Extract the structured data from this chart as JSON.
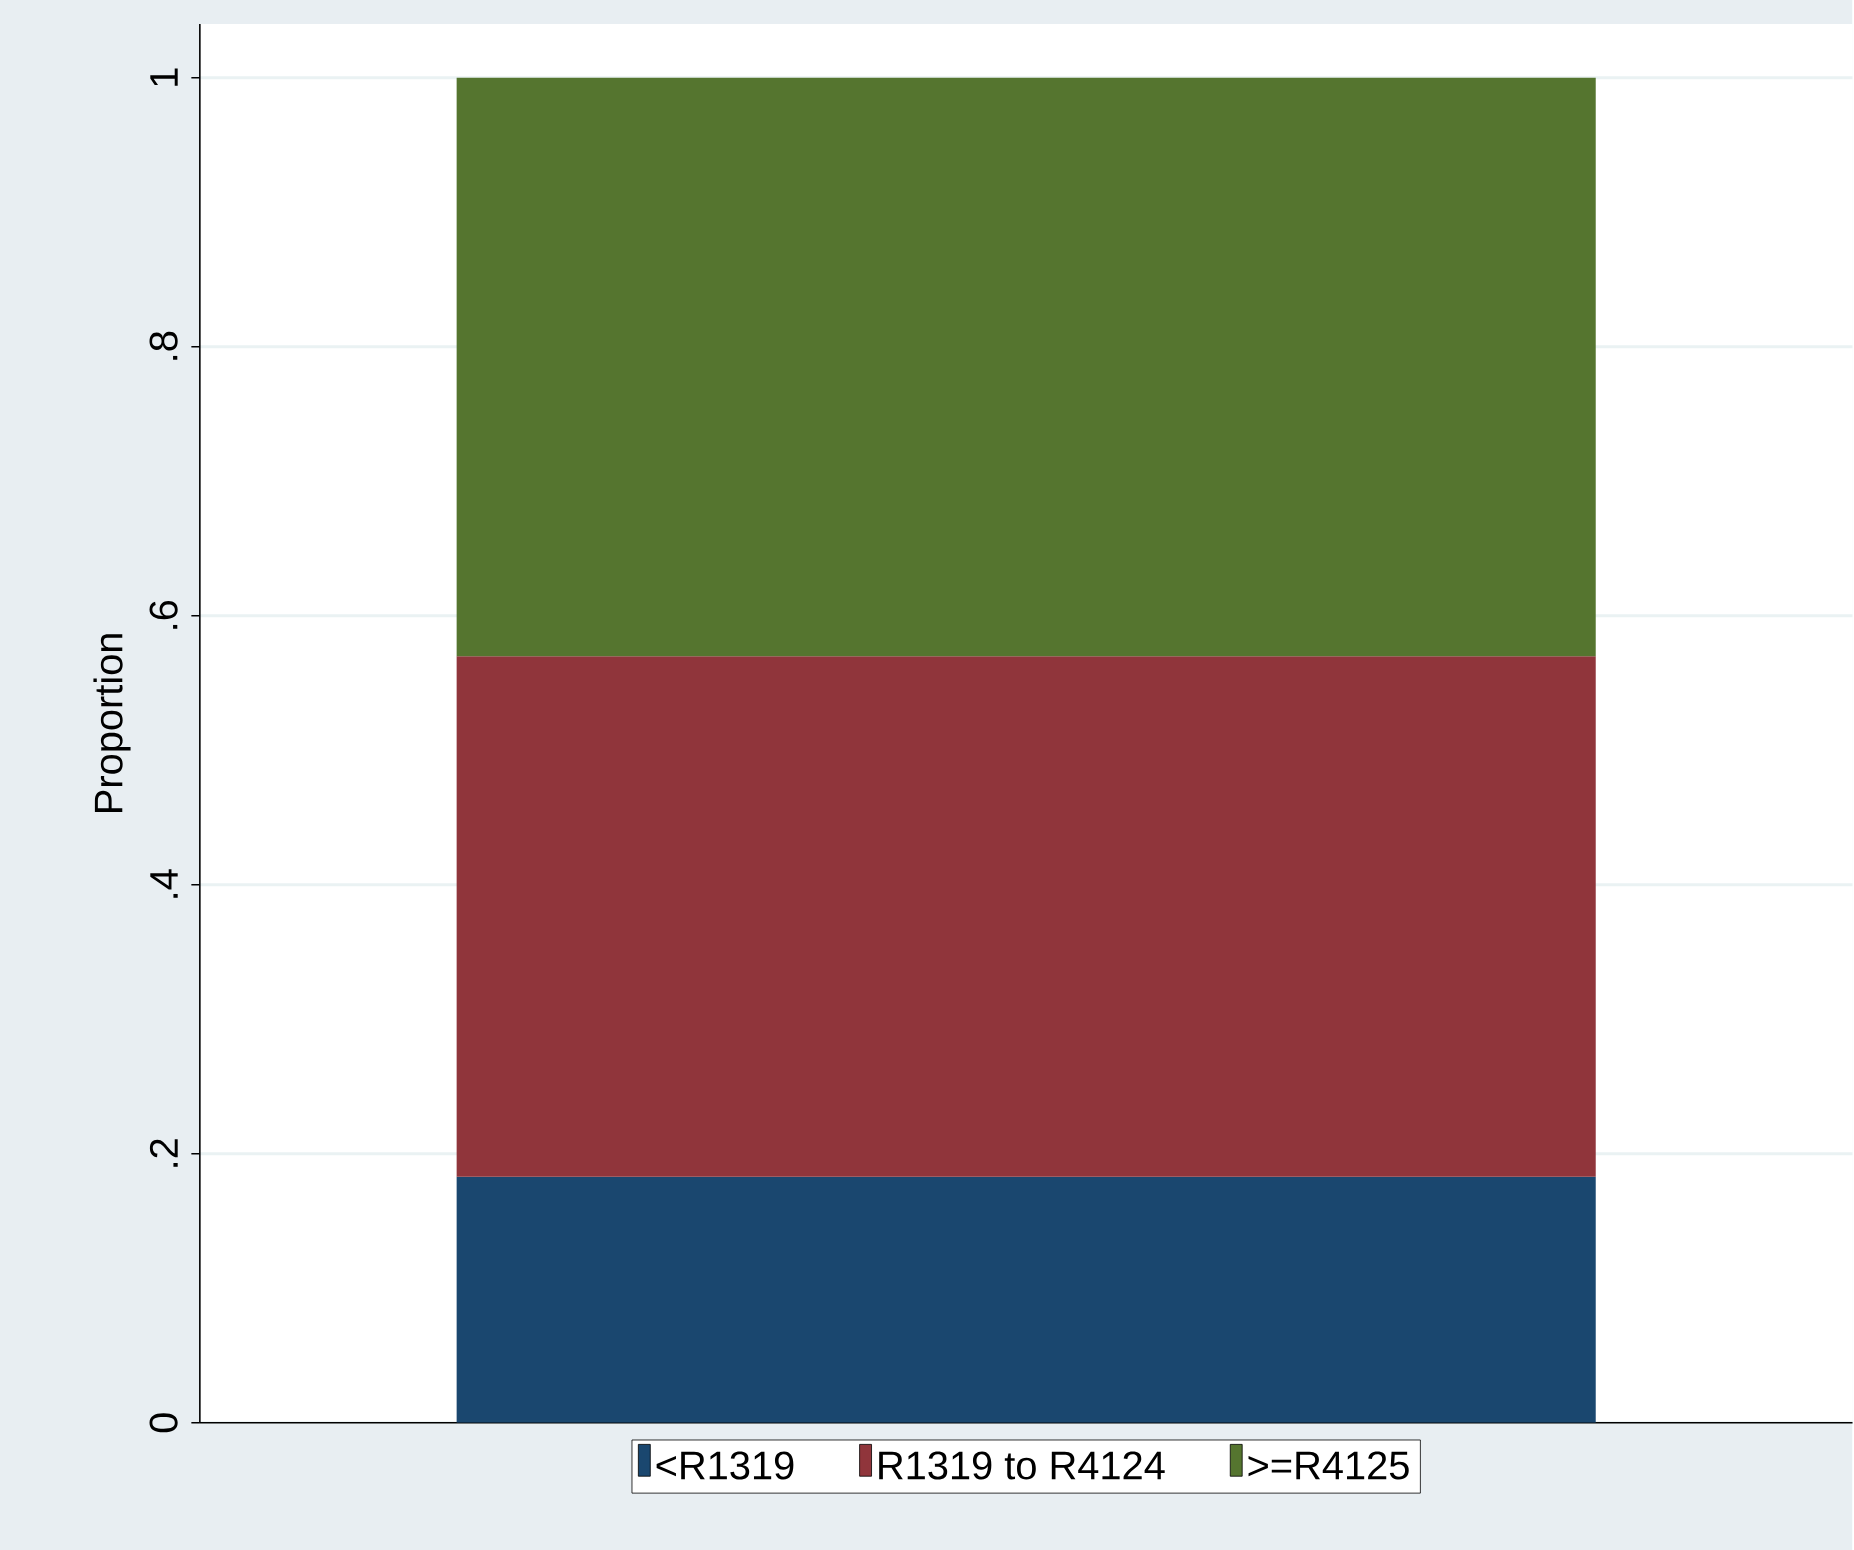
{
  "chart_data": {
    "type": "bar",
    "stacked": true,
    "ylabel": "Proportion",
    "categories": [
      null
    ],
    "series": [
      {
        "name": "<R1319",
        "color": "#1a476f",
        "values": [
          0.183
        ]
      },
      {
        "name": "R1319 to R4124",
        "color": "#90353b",
        "values": [
          0.387
        ]
      },
      {
        "name": ">=R4125",
        "color": "#55752f",
        "values": [
          0.43
        ]
      }
    ],
    "ylim": [
      0,
      1.04
    ],
    "yticks": [
      {
        "value": 0,
        "label": "0"
      },
      {
        "value": 0.2,
        "label": ".2"
      },
      {
        "value": 0.4,
        "label": ".4"
      },
      {
        "value": 0.6,
        "label": ".6"
      },
      {
        "value": 0.8,
        "label": ".8"
      },
      {
        "value": 1,
        "label": "1"
      }
    ],
    "grid": "y",
    "legend": "bottom"
  }
}
